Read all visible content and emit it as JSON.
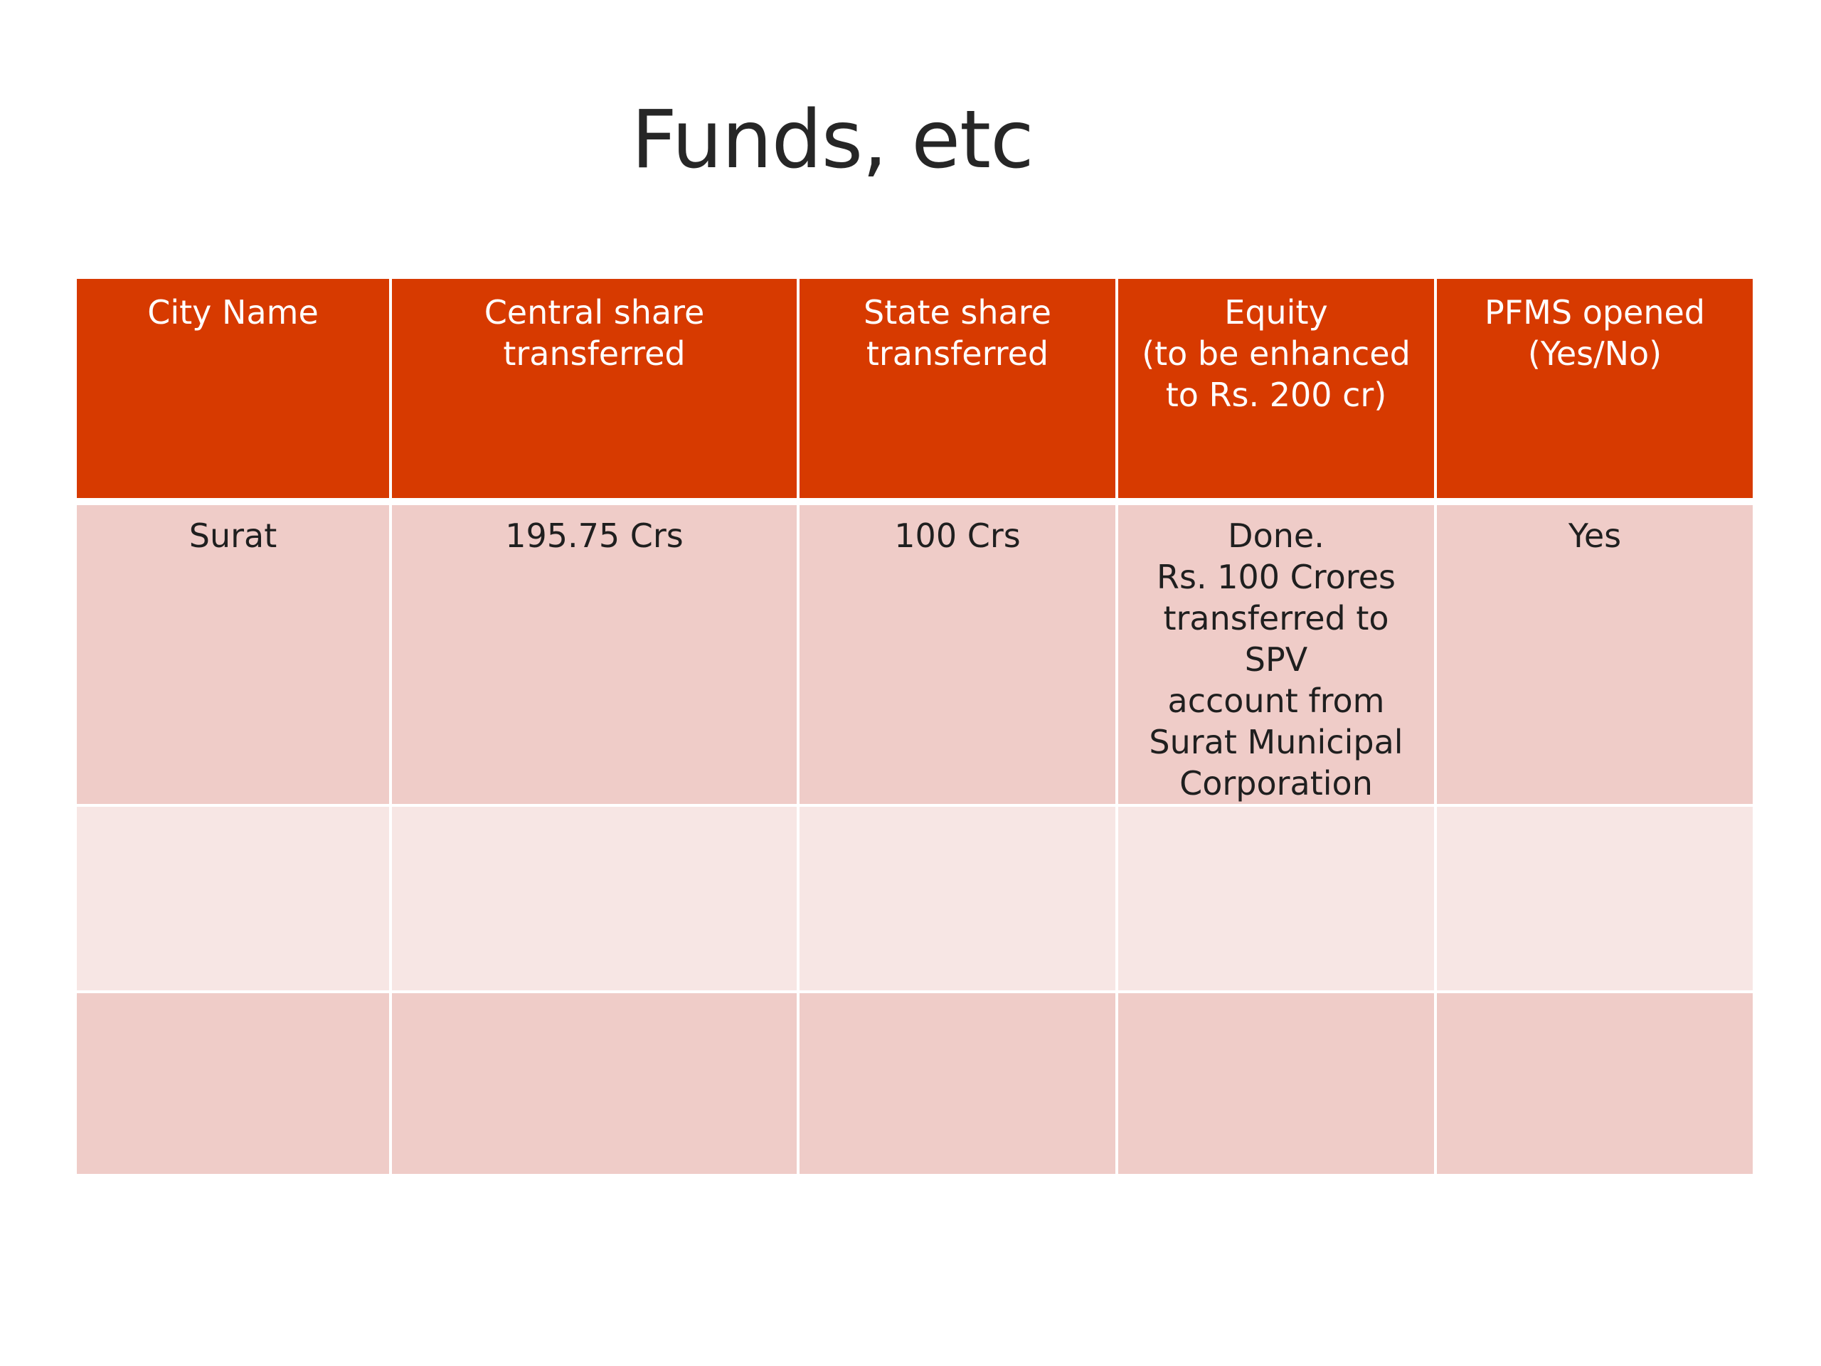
{
  "title": "Funds, etc",
  "table": {
    "headers": [
      [
        "City Name"
      ],
      [
        "Central share",
        "transferred"
      ],
      [
        "State share",
        "transferred"
      ],
      [
        "Equity",
        "(to be enhanced",
        "to Rs. 200 cr)"
      ],
      [
        "PFMS opened",
        "(Yes/No)"
      ]
    ],
    "rows": [
      [
        [
          "Surat"
        ],
        [
          "195.75 Crs"
        ],
        [
          "100 Crs"
        ],
        [
          "Done.",
          "Rs. 100 Crores",
          "transferred to SPV",
          "account from",
          "Surat Municipal",
          "Corporation"
        ],
        [
          "Yes"
        ]
      ],
      [
        [
          ""
        ],
        [
          ""
        ],
        [
          ""
        ],
        [
          ""
        ],
        [
          ""
        ]
      ],
      [
        [
          ""
        ],
        [
          ""
        ],
        [
          ""
        ],
        [
          ""
        ],
        [
          ""
        ]
      ]
    ]
  },
  "colors": {
    "header_bg": "#d73a00",
    "row_dark": "#efccc8",
    "row_light": "#f7e6e4"
  }
}
